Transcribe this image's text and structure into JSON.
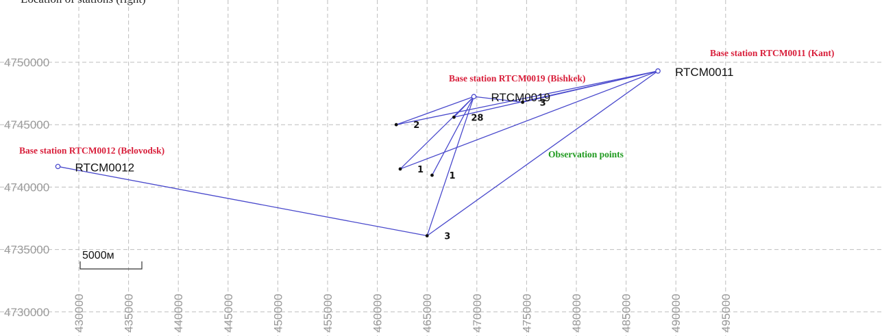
{
  "top_text": "Location of stations (right)",
  "map": {
    "x_ticks": [
      "430000",
      "435000",
      "440000",
      "445000",
      "450000",
      "455000",
      "460000",
      "465000",
      "470000",
      "475000",
      "480000",
      "485000",
      "490000",
      "495000"
    ],
    "y_ticks": [
      "4750000",
      "4745000",
      "4740000",
      "4735000",
      "4730000"
    ],
    "scale_bar_label": "5000м",
    "colors": {
      "baseline": "#4848cc",
      "station_caption": "#d81e3a",
      "group_caption": "#1f9a1f",
      "grid": "#bdbdbd",
      "tick_text": "#9a9a9a"
    },
    "stations": [
      {
        "id": "RTCM0012",
        "caption": "Base station RTCM0012 (Belovodsk)",
        "x": 427900,
        "y": 4741650
      },
      {
        "id": "RTCM0019",
        "caption": "Base station RTCM0019 (Bishkek)",
        "x": 469700,
        "y": 4747250
      },
      {
        "id": "RTCM0011",
        "caption": "Base station RTCM0011 (Kant)",
        "x": 488200,
        "y": 4749300
      }
    ],
    "observation_caption": "Observation points",
    "points": [
      {
        "label": "3",
        "x": 465000,
        "y": 4736100
      },
      {
        "label": "2",
        "x": 461900,
        "y": 4745000
      },
      {
        "label": "28",
        "x": 467700,
        "y": 4745600
      },
      {
        "label": "3",
        "x": 474600,
        "y": 4746800
      },
      {
        "label": "1",
        "x": 462300,
        "y": 4741450
      },
      {
        "label": "1",
        "x": 465500,
        "y": 4740950
      }
    ],
    "baselines": [
      [
        "RTCM0012",
        "P0"
      ],
      [
        "P0",
        "RTCM0019"
      ],
      [
        "P0",
        "RTCM0011"
      ],
      [
        "RTCM0019",
        "P1"
      ],
      [
        "RTCM0019",
        "P2"
      ],
      [
        "RTCM0019",
        "P4"
      ],
      [
        "RTCM0019",
        "P5"
      ],
      [
        "RTCM0011",
        "P1"
      ],
      [
        "RTCM0011",
        "P2"
      ],
      [
        "RTCM0011",
        "P3"
      ],
      [
        "RTCM0011",
        "P4"
      ],
      [
        "RTCM0019",
        "P3"
      ]
    ]
  }
}
